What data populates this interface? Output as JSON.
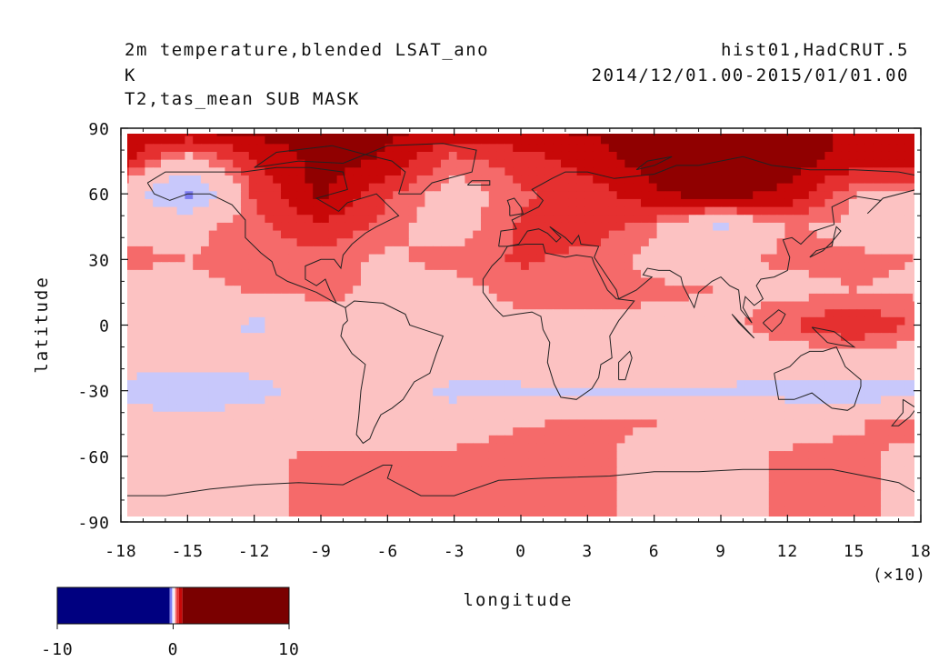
{
  "header": {
    "left_line1": "2m temperature,blended LSAT_ano",
    "left_line2": "K",
    "left_line3": "T2,tas_mean SUB MASK",
    "right_line1": "hist01,HadCRUT.5",
    "right_line2": "2014/12/01.00-2015/01/01.00"
  },
  "chart_data": {
    "type": "heatmap",
    "xlabel": "longitude",
    "ylabel": "latitude",
    "x_multiplier_label": "(×10)",
    "xlim": [
      -18,
      18
    ],
    "ylim": [
      -90,
      90
    ],
    "x_ticks": [
      "-18",
      "-15",
      "-12",
      "-9",
      "-6",
      "-3",
      "0",
      "3",
      "6",
      "9",
      "12",
      "15",
      "18"
    ],
    "y_ticks": [
      "90",
      "60",
      "30",
      "0",
      "-30",
      "-60",
      "-90"
    ],
    "x_tick_values": [
      -18,
      -15,
      -12,
      -9,
      -6,
      -3,
      0,
      3,
      6,
      9,
      12,
      15,
      18
    ],
    "y_tick_values": [
      90,
      60,
      30,
      0,
      -30,
      -60,
      -90
    ],
    "colorbar": {
      "min": -10,
      "max": 10,
      "tick_labels": [
        "-10",
        "0",
        "10"
      ],
      "tick_values": [
        -10,
        0,
        10
      ]
    },
    "levels": [
      -3,
      -2,
      -1,
      -0.5,
      0,
      0.5,
      1,
      2,
      3
    ],
    "colors": {
      "cold2": "#7b7bf0",
      "cold1": "#c8c8fb",
      "zero": "#ffffff",
      "warm1": "#fcc2c2",
      "warm2": "#f56a6a",
      "warm3": "#e53030",
      "warm4": "#c80808",
      "warm5": "#900000",
      "deep_blue": "#000080",
      "deep_red": "#7a0000"
    },
    "field_grid": {
      "lon_start": -180,
      "lon_step": 30,
      "lat_start": 90,
      "lat_step": -15,
      "values": [
        [
          2.6,
          3.1,
          3.2,
          3.3,
          3.1,
          2.8,
          2.9,
          3.0,
          3.1,
          3.1,
          3.2,
          2.8,
          2.6
        ],
        [
          2.5,
          0.5,
          2.2,
          3.2,
          2.8,
          1.2,
          1.8,
          2.6,
          3.2,
          3.4,
          3.3,
          2.6,
          2.5
        ],
        [
          0.3,
          -1.8,
          1.6,
          3.1,
          1.6,
          0.6,
          1.4,
          1.8,
          2.8,
          3.3,
          2.7,
          1.0,
          0.8
        ],
        [
          0.9,
          0.8,
          1.3,
          2.1,
          1.2,
          0.6,
          1.6,
          1.9,
          1.1,
          -0.4,
          1.1,
          0.8,
          0.7
        ],
        [
          1.1,
          1.0,
          1.2,
          1.2,
          0.9,
          1.2,
          1.6,
          1.3,
          0.8,
          0.9,
          1.1,
          1.1,
          1.0
        ],
        [
          0.7,
          0.9,
          1.0,
          1.2,
          0.8,
          0.7,
          1.2,
          1.3,
          1.1,
          1.0,
          0.8,
          1.0,
          0.9
        ],
        [
          0.5,
          0.4,
          -0.6,
          0.6,
          0.7,
          0.6,
          0.8,
          0.7,
          0.8,
          0.7,
          1.5,
          2.1,
          1.4
        ],
        [
          0.4,
          0.3,
          0.4,
          0.8,
          1.0,
          0.6,
          0.5,
          0.7,
          0.6,
          0.4,
          0.5,
          0.6,
          0.5
        ],
        [
          -0.7,
          -1.4,
          -0.8,
          0.5,
          0.4,
          -0.6,
          -0.5,
          -0.4,
          -0.5,
          -0.4,
          -0.7,
          -0.9,
          -0.8
        ],
        [
          0.4,
          0.3,
          0.5,
          0.6,
          0.3,
          0.4,
          0.9,
          1.2,
          1.0,
          0.8,
          0.7,
          0.9,
          1.4
        ],
        [
          0.6,
          0.8,
          0.9,
          1.1,
          1.2,
          1.2,
          1.5,
          1.3,
          0.6,
          0.8,
          1.1,
          1.2,
          0.7
        ],
        [
          0.6,
          0.8,
          0.9,
          1.1,
          1.2,
          1.2,
          1.5,
          1.3,
          0.6,
          0.8,
          1.1,
          1.2,
          0.7
        ],
        [
          0.6,
          0.8,
          0.9,
          1.1,
          1.2,
          1.2,
          1.5,
          1.3,
          0.6,
          0.8,
          1.1,
          1.2,
          0.7
        ]
      ]
    },
    "grid": false,
    "legend": "bottom-left colorbar"
  }
}
